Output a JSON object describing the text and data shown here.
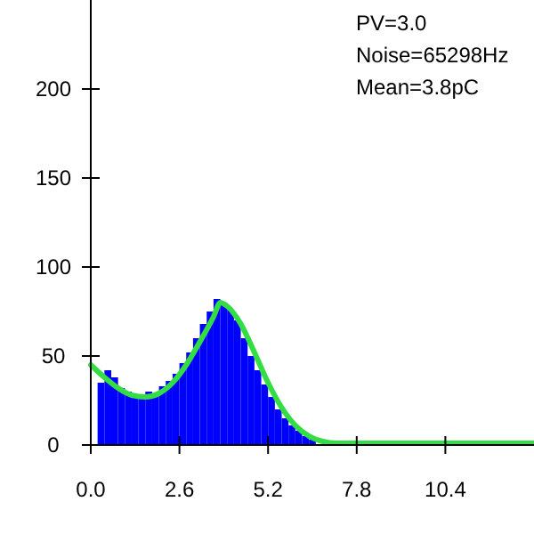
{
  "chart_data": {
    "type": "histogram",
    "bins": [
      0.2,
      0.4,
      0.6,
      0.8,
      1.0,
      1.2,
      1.4,
      1.6,
      1.8,
      2.0,
      2.2,
      2.4,
      2.6,
      2.8,
      3.0,
      3.2,
      3.4,
      3.6,
      3.8,
      4.0,
      4.2,
      4.4,
      4.6,
      4.8,
      5.0,
      5.2,
      5.4,
      5.6,
      5.8,
      6.0,
      6.2,
      6.4,
      6.6,
      6.8,
      7.0,
      13.0
    ],
    "values": [
      35,
      42,
      38,
      32,
      30,
      28,
      27,
      30,
      29,
      33,
      36,
      40,
      46,
      52,
      60,
      68,
      75,
      82,
      80,
      76,
      70,
      60,
      50,
      42,
      34,
      27,
      20,
      15,
      11,
      8,
      5,
      3,
      null,
      1,
      1
    ],
    "color": "#0000ff",
    "series": [
      {
        "type": "line",
        "color": "#33dd44",
        "x": [
          0,
          0.4,
          0.8,
          1.2,
          1.6,
          2.0,
          2.4,
          2.8,
          3.2,
          3.6,
          3.8,
          4.0,
          4.4,
          4.8,
          5.2,
          5.6,
          6.0,
          6.4,
          6.8,
          7.2,
          8.0,
          13.0
        ],
        "values": [
          45,
          38,
          32,
          28,
          27,
          29,
          35,
          45,
          58,
          72,
          80,
          78,
          68,
          52,
          35,
          21,
          11,
          5,
          2,
          1,
          1,
          1
        ]
      }
    ],
    "xlim": [
      0,
      13
    ],
    "ylim": [
      0,
      250
    ],
    "xticks": [
      {
        "value": 0,
        "label": "0.0"
      },
      {
        "value": 2.6,
        "label": "2.6"
      },
      {
        "value": 5.2,
        "label": "5.2"
      },
      {
        "value": 7.8,
        "label": "7.8"
      },
      {
        "value": 10.4,
        "label": "10.4"
      }
    ],
    "yticks": [
      0,
      50,
      100,
      150,
      200
    ],
    "annotations": [
      "PV=3.0",
      "Noise=65298Hz",
      "Mean=3.8pC"
    ]
  }
}
